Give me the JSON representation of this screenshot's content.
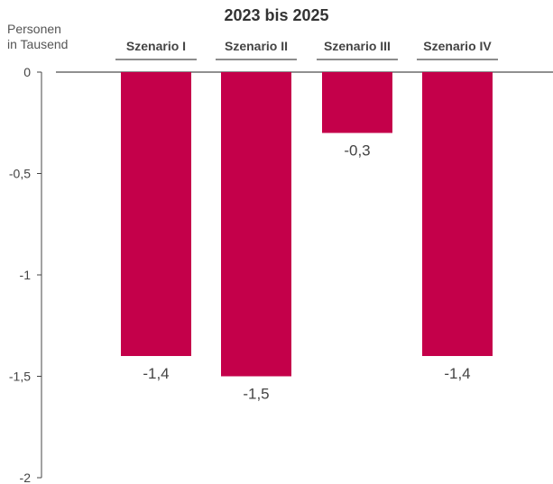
{
  "chart_data": {
    "type": "bar",
    "title": "2023 bis 2025",
    "ylabel_line1": "Personen",
    "ylabel_line2": "in Tausend",
    "categories": [
      "Szenario I",
      "Szenario II",
      "Szenario III",
      "Szenario IV"
    ],
    "values": [
      -1.4,
      -1.5,
      -0.3,
      -1.4
    ],
    "value_labels": [
      "-1,4",
      "-1,5",
      "-0,3",
      "-1,4"
    ],
    "yticks": [
      0,
      -0.5,
      -1,
      -1.5,
      -2
    ],
    "ytick_labels": [
      "0",
      "-0,5",
      "-1",
      "-1,5",
      "-2"
    ],
    "ylim": [
      -2,
      0
    ],
    "bar_color": "#c4004a",
    "grid": false,
    "legend": "none"
  }
}
